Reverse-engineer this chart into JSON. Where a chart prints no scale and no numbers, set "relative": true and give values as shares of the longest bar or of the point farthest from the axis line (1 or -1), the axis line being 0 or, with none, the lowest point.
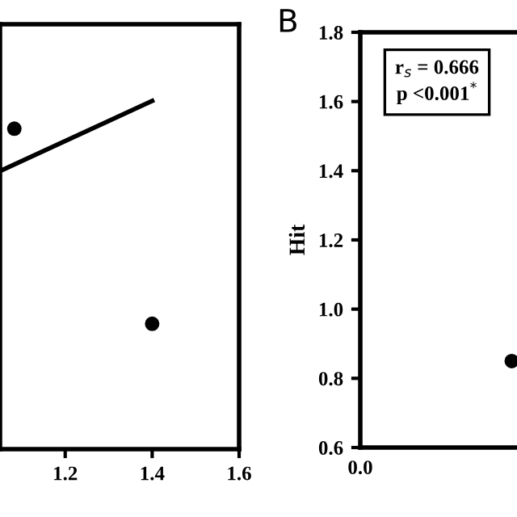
{
  "chart_data": [
    {
      "type": "scatter",
      "relative": true,
      "xlim": [
        1.05,
        1.6
      ],
      "xticks": [
        1.2,
        1.4,
        1.6
      ],
      "tick_labels": "x",
      "marker": "circle",
      "series": [
        {
          "color": "#000000",
          "x": [
            1.083,
            1.4
          ],
          "values": [
            0.92,
            0.36
          ]
        },
        {
          "type": "line",
          "marker": "none",
          "color": "#000000",
          "x": [
            1.053,
            1.4
          ],
          "values": [
            0.8,
            1.0
          ]
        }
      ]
    },
    {
      "type": "scatter",
      "title": "B",
      "ylabel": "Hit",
      "categories": [
        null,
        null
      ],
      "ylim": [
        0.6,
        1.8
      ],
      "yticks": [
        0.6,
        0.8,
        {
          "value": 1.0,
          "label": "1.0"
        },
        1.2,
        1.4,
        1.6,
        1.8
      ],
      "marker": "circle",
      "annotations": [
        "r$_{s}$ = 0.666\np <0.001$^{*}$",
        "0.0"
      ],
      "series": [
        {
          "color": "#000000",
          "values": [
            null,
            0.85
          ]
        }
      ]
    }
  ]
}
